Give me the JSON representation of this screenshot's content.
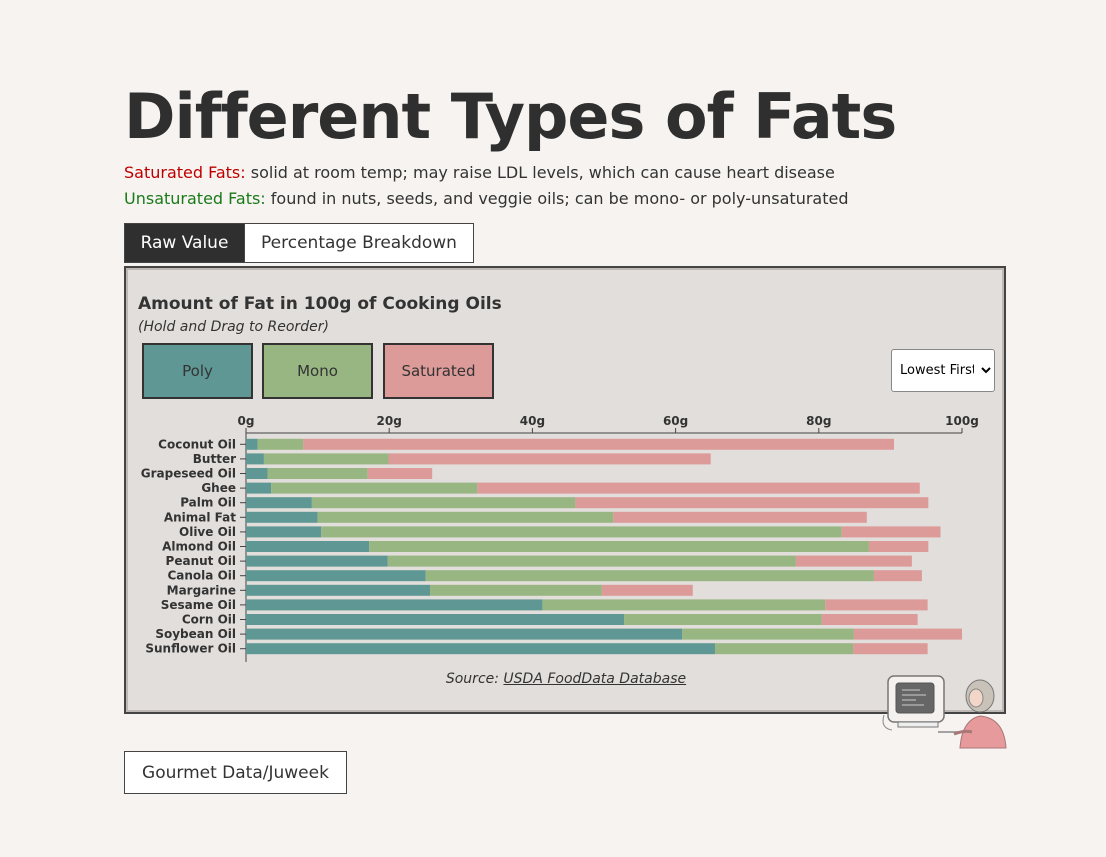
{
  "page": {
    "title": "Different Types of Fats",
    "saturated_label": "Saturated Fats:",
    "saturated_desc": " solid at room temp; may raise LDL levels, which can cause heart disease",
    "unsaturated_label": "Unsaturated Fats:",
    "unsaturated_desc": " found in nuts, seeds, and veggie oils; can be mono- or poly-unsaturated",
    "credit": "Gourmet Data/Juweek"
  },
  "tabs": {
    "raw": "Raw Value",
    "percentage": "Percentage Breakdown"
  },
  "legend": {
    "poly": "Poly",
    "mono": "Mono",
    "saturated": "Saturated"
  },
  "sort": {
    "selected": "Lowest First"
  },
  "source": {
    "prefix": "Source: ",
    "link_text": "USDA FoodData Database"
  },
  "colors": {
    "poly": "#5f9795",
    "mono": "#98b682",
    "saturated": "#dc9a98"
  },
  "chart_data": {
    "type": "bar",
    "orientation": "horizontal",
    "stacked": true,
    "title": "Amount of Fat in 100g of Cooking Oils",
    "subtitle": "(Hold and Drag to Reorder)",
    "xlabel": "",
    "ylabel": "",
    "xlim": [
      0,
      100
    ],
    "x_ticks": [
      0,
      20,
      40,
      60,
      80,
      100
    ],
    "x_tick_labels": [
      "0g",
      "20g",
      "40g",
      "60g",
      "80g",
      "100g"
    ],
    "categories": [
      "Coconut Oil",
      "Butter",
      "Grapeseed Oil",
      "Ghee",
      "Palm Oil",
      "Animal Fat",
      "Olive Oil",
      "Almond Oil",
      "Peanut Oil",
      "Canola Oil",
      "Margarine",
      "Sesame Oil",
      "Corn Oil",
      "Soybean Oil",
      "Sunflower Oil"
    ],
    "series": [
      {
        "name": "Poly",
        "values": [
          1.6,
          2.5,
          3.0,
          3.5,
          9.2,
          10.0,
          10.5,
          17.2,
          19.8,
          25.1,
          25.7,
          41.4,
          52.8,
          60.9,
          65.5
        ]
      },
      {
        "name": "Mono",
        "values": [
          6.4,
          17.4,
          14.0,
          28.8,
          36.8,
          41.3,
          72.7,
          69.8,
          57.0,
          62.6,
          24.0,
          39.5,
          27.6,
          24.0,
          19.3
        ]
      },
      {
        "name": "Saturated",
        "values": [
          82.5,
          45.0,
          9.0,
          61.8,
          49.3,
          35.4,
          13.8,
          8.3,
          16.2,
          6.7,
          12.7,
          14.3,
          13.4,
          15.1,
          10.4
        ]
      }
    ]
  }
}
